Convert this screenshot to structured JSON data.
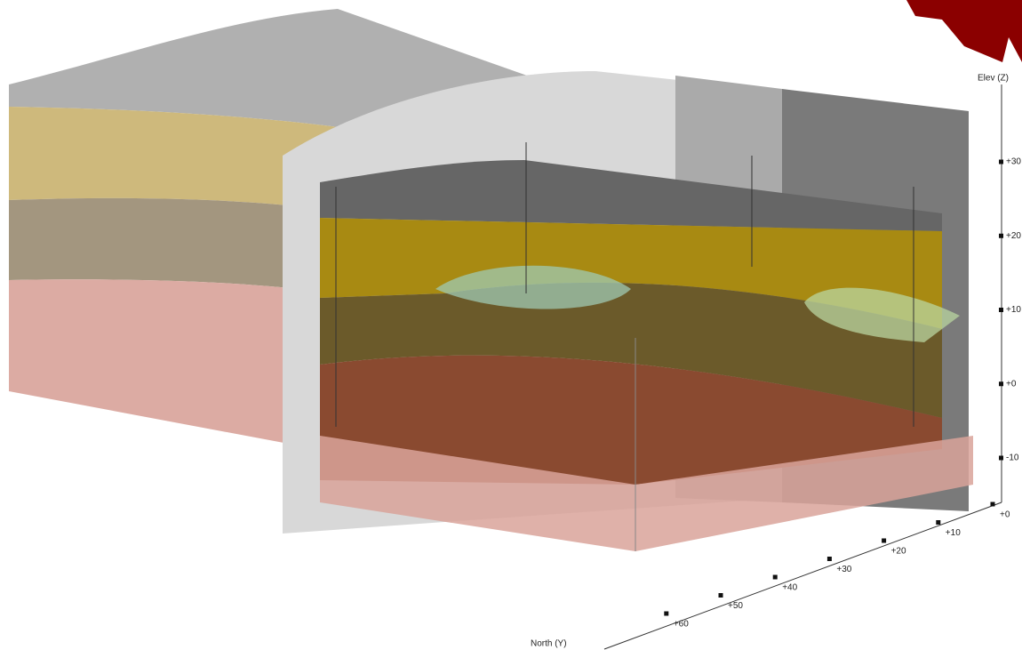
{
  "axes": {
    "z": {
      "label": "Elev (Z)",
      "ticks": [
        "+30",
        "+20",
        "+10",
        "+0",
        "-10"
      ]
    },
    "y": {
      "label": "North (Y)",
      "ticks": [
        "+0",
        "+10",
        "+20",
        "+30",
        "+40",
        "+50",
        "+60"
      ]
    }
  }
}
